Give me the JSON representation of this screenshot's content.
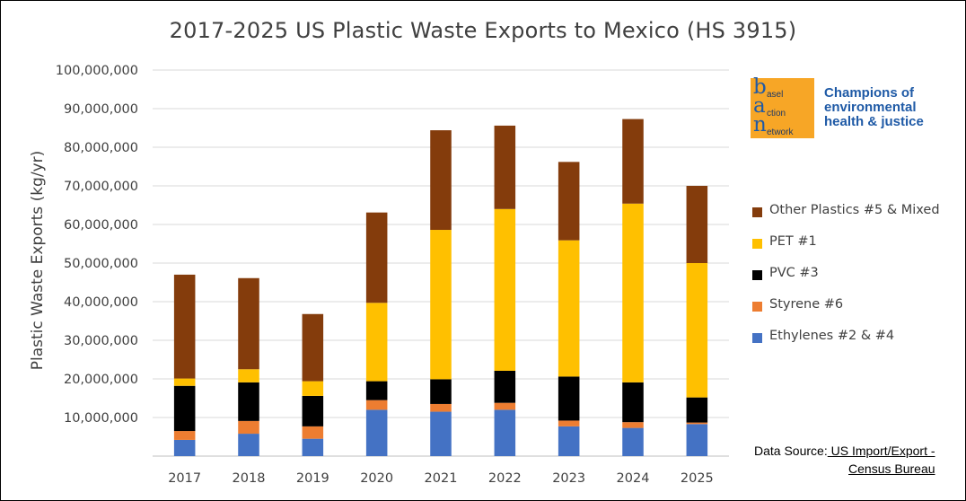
{
  "chart_data": {
    "type": "bar",
    "stacked": true,
    "title": "2017-2025 US Plastic Waste Exports to Mexico (HS 3915)",
    "ylabel": "Plastic Waste Exports (kg/yr)",
    "xlabel": "",
    "ylim": [
      0,
      100000000
    ],
    "ytick_labels": [
      "100,000,000",
      "90,000,000",
      "80,000,000",
      "70,000,000",
      "60,000,000",
      "50,000,000",
      "40,000,000",
      "30,000,000",
      "20,000,000",
      "10,000,000"
    ],
    "categories": [
      "2017",
      "2018",
      "2019",
      "2020",
      "2021",
      "2022",
      "2023",
      "2024",
      "2025"
    ],
    "grid": true,
    "legend_placement": "right",
    "series": [
      {
        "name": "Ethylenes #2 & #4",
        "color": "#4472c4",
        "values": [
          4200000,
          5800000,
          4500000,
          12000000,
          11500000,
          12000000,
          7700000,
          7300000,
          8300000
        ]
      },
      {
        "name": "Styrene #6",
        "color": "#ed7d31",
        "values": [
          2300000,
          3300000,
          3200000,
          2500000,
          2000000,
          1800000,
          1500000,
          1500000,
          400000
        ]
      },
      {
        "name": "PVC #3",
        "color": "#000000",
        "values": [
          11700000,
          10000000,
          7900000,
          4900000,
          6400000,
          8300000,
          11400000,
          10300000,
          6500000
        ]
      },
      {
        "name": "PET #1",
        "color": "#ffc000",
        "values": [
          1900000,
          3400000,
          3800000,
          20300000,
          38700000,
          41900000,
          35300000,
          46300000,
          34800000
        ]
      },
      {
        "name": "Other Plastics #5 & Mixed",
        "color": "#843c0c",
        "values": [
          26900000,
          23600000,
          17400000,
          23400000,
          25800000,
          21600000,
          20300000,
          21900000,
          20000000
        ]
      }
    ],
    "legend_order": [
      "Other Plastics #5 & Mixed",
      "PET #1",
      "PVC #3",
      "Styrene #6",
      "Ethylenes #2 & #4"
    ]
  },
  "logo": {
    "letters": [
      "b",
      "a",
      "n"
    ],
    "words": [
      "asel",
      "ction",
      "etwork"
    ],
    "tagline": [
      "Champions of",
      "environmental",
      "health & justice"
    ]
  },
  "source": {
    "prefix": "Data Source:",
    "link_text": " US Import/Export -",
    "line2": "Census Bureau"
  }
}
